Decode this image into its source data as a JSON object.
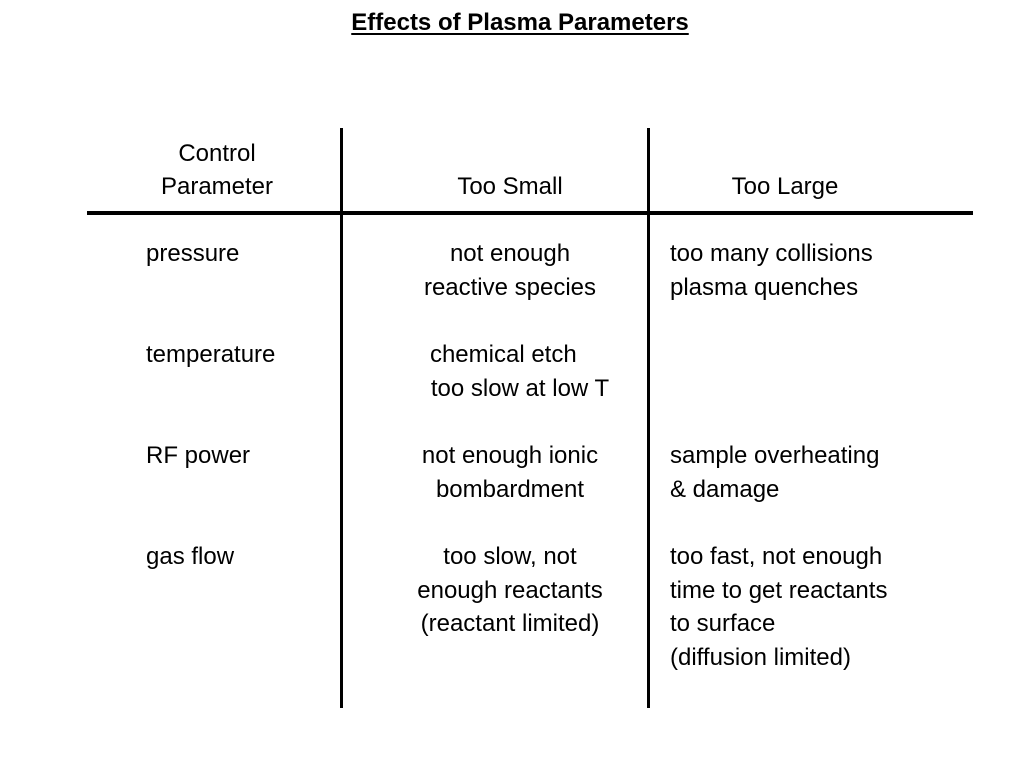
{
  "title": "Effects of Plasma Parameters",
  "table": {
    "headers": {
      "control_line1": "Control",
      "control_line2": "Parameter",
      "too_small": "Too Small",
      "too_large": "Too Large"
    },
    "rows": [
      {
        "parameter": "pressure",
        "too_small": "not enough\nreactive species",
        "too_large": "too many collisions\nplasma quenches"
      },
      {
        "parameter": "temperature",
        "too_small": "chemical etch  \n   too slow at low T",
        "too_large": ""
      },
      {
        "parameter": "RF power",
        "too_small": "not enough ionic\nbombardment",
        "too_large": "sample overheating\n& damage"
      },
      {
        "parameter": "gas flow",
        "too_small": "too slow, not\nenough reactants\n(reactant limited)",
        "too_large": "too fast, not enough\ntime to get reactants\nto surface\n(diffusion limited)"
      }
    ]
  }
}
